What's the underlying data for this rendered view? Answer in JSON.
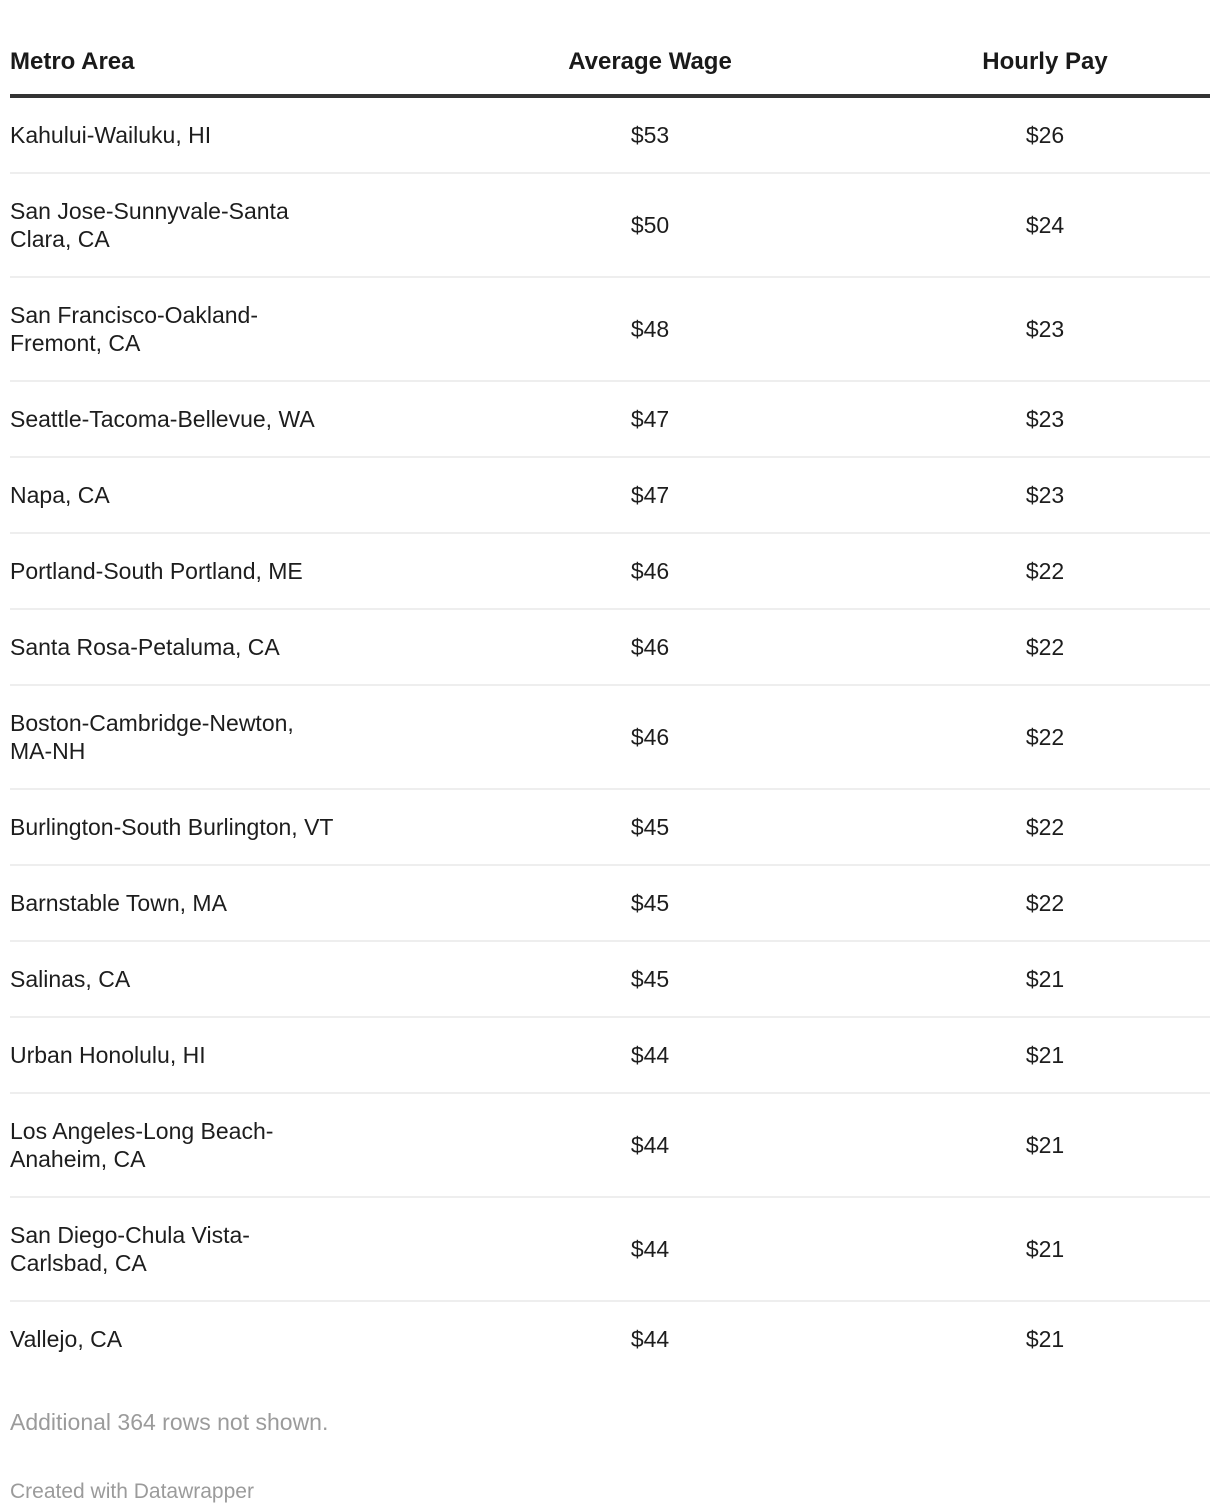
{
  "table": {
    "columns": [
      {
        "id": "metro",
        "label": "Metro Area",
        "align": "left"
      },
      {
        "id": "wage",
        "label": "Average Wage",
        "align": "center"
      },
      {
        "id": "hourly",
        "label": "Hourly Pay",
        "align": "center"
      }
    ],
    "rows": [
      {
        "metro": "Kahului-Wailuku, HI",
        "average_wage": "$53",
        "hourly_pay": "$26"
      },
      {
        "metro": "San Jose-Sunnyvale-Santa\nClara, CA",
        "average_wage": "$50",
        "hourly_pay": "$24"
      },
      {
        "metro": "San Francisco-Oakland-\nFremont, CA",
        "average_wage": "$48",
        "hourly_pay": "$23"
      },
      {
        "metro": "Seattle-Tacoma-Bellevue, WA",
        "average_wage": "$47",
        "hourly_pay": "$23"
      },
      {
        "metro": "Napa, CA",
        "average_wage": "$47",
        "hourly_pay": "$23"
      },
      {
        "metro": "Portland-South Portland, ME",
        "average_wage": "$46",
        "hourly_pay": "$22"
      },
      {
        "metro": "Santa Rosa-Petaluma, CA",
        "average_wage": "$46",
        "hourly_pay": "$22"
      },
      {
        "metro": "Boston-Cambridge-Newton,\nMA-NH",
        "average_wage": "$46",
        "hourly_pay": "$22"
      },
      {
        "metro": "Burlington-South Burlington, VT",
        "average_wage": "$45",
        "hourly_pay": "$22"
      },
      {
        "metro": "Barnstable Town, MA",
        "average_wage": "$45",
        "hourly_pay": "$22"
      },
      {
        "metro": "Salinas, CA",
        "average_wage": "$45",
        "hourly_pay": "$21"
      },
      {
        "metro": "Urban Honolulu, HI",
        "average_wage": "$44",
        "hourly_pay": "$21"
      },
      {
        "metro": "Los Angeles-Long Beach-\nAnaheim, CA",
        "average_wage": "$44",
        "hourly_pay": "$21"
      },
      {
        "metro": "San Diego-Chula Vista-\nCarlsbad, CA",
        "average_wage": "$44",
        "hourly_pay": "$21"
      },
      {
        "metro": "Vallejo, CA",
        "average_wage": "$44",
        "hourly_pay": "$21"
      }
    ]
  },
  "footer": {
    "note": "Additional 364 rows not shown.",
    "attribution": "Created with Datawrapper"
  },
  "colors": {
    "header_rule": "#333333",
    "row_divider": "#eeeeee",
    "text": "#1d1d1d",
    "muted_text": "#9b9b9b"
  },
  "chart_data": {
    "type": "table",
    "columns": [
      "Metro Area",
      "Average Wage",
      "Hourly Pay"
    ],
    "rows": [
      [
        "Kahului-Wailuku, HI",
        53,
        26
      ],
      [
        "San Jose-Sunnyvale-Santa Clara, CA",
        50,
        24
      ],
      [
        "San Francisco-Oakland-Fremont, CA",
        48,
        23
      ],
      [
        "Seattle-Tacoma-Bellevue, WA",
        47,
        23
      ],
      [
        "Napa, CA",
        47,
        23
      ],
      [
        "Portland-South Portland, ME",
        46,
        22
      ],
      [
        "Santa Rosa-Petaluma, CA",
        46,
        22
      ],
      [
        "Boston-Cambridge-Newton, MA-NH",
        46,
        22
      ],
      [
        "Burlington-South Burlington, VT",
        45,
        22
      ],
      [
        "Barnstable Town, MA",
        45,
        22
      ],
      [
        "Salinas, CA",
        45,
        21
      ],
      [
        "Urban Honolulu, HI",
        44,
        21
      ],
      [
        "Los Angeles-Long Beach-Anaheim, CA",
        44,
        21
      ],
      [
        "San Diego-Chula Vista-Carlsbad, CA",
        44,
        21
      ],
      [
        "Vallejo, CA",
        44,
        21
      ]
    ],
    "values_unit": "USD",
    "note": "Additional 364 rows not shown."
  }
}
